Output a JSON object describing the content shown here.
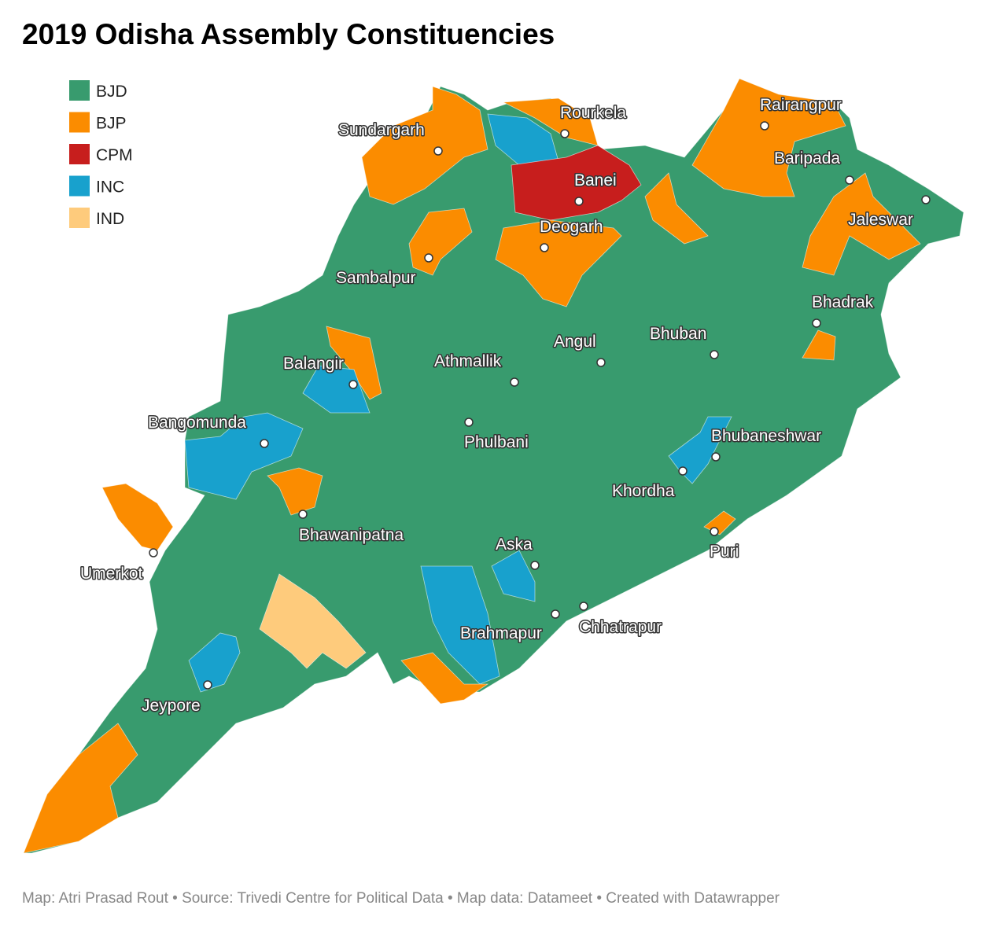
{
  "header": {
    "title": "2019 Odisha Assembly Constituencies"
  },
  "legend": [
    {
      "label": "BJD",
      "color": "#389b6e"
    },
    {
      "label": "BJP",
      "color": "#fb8c00"
    },
    {
      "label": "CPM",
      "color": "#c71e1d"
    },
    {
      "label": "INC",
      "color": "#18a1cd"
    },
    {
      "label": "IND",
      "color": "#fecb7c"
    }
  ],
  "places": [
    "Rourkela",
    "Rairangpur",
    "Sundargarh",
    "Baripada",
    "Banei",
    "Jaleswar",
    "Deogarh",
    "Sambalpur",
    "Bhadrak",
    "Angul",
    "Bhuban",
    "Balangir",
    "Athmallik",
    "Bangomunda",
    "Phulbani",
    "Bhubaneshwar",
    "Khordha",
    "Bhawanipatna",
    "Aska",
    "Puri",
    "Umerkot",
    "Chhatrapur",
    "Brahmapur",
    "Jeypore"
  ],
  "footer": "Map: Atri Prasad Rout • Source: Trivedi Centre for Political Data • Map data: Datameet • Created with Datawrapper"
}
